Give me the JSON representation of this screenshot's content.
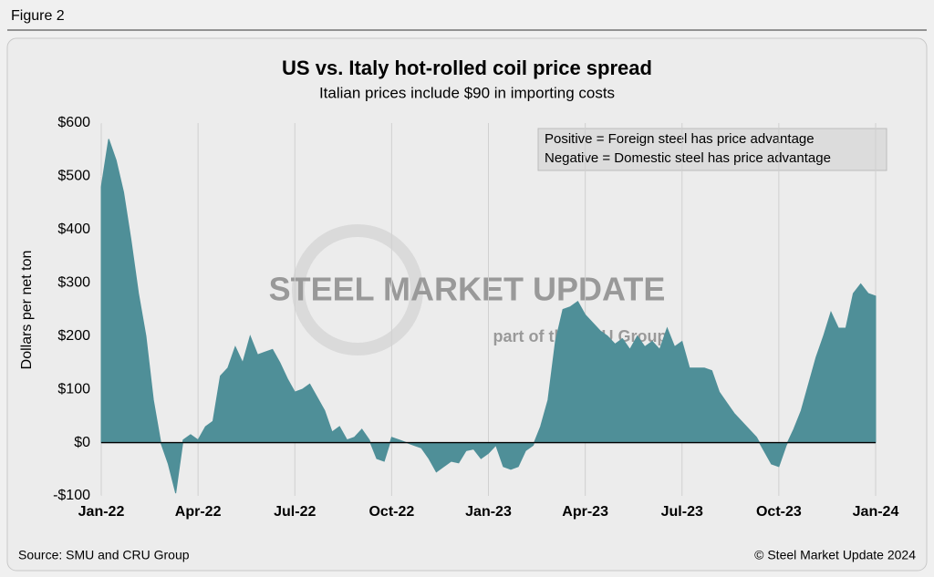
{
  "figure_label": "Figure 2",
  "chart_data": {
    "type": "area",
    "title": "US vs. Italy hot-rolled coil price spread",
    "subtitle": "Italian prices include $90 in importing costs",
    "y_label": "Dollars per net ton",
    "annotations": [
      "Positive = Foreign steel has price advantage",
      "Negative = Domestic steel has price advantage"
    ],
    "watermark": [
      "STEEL MARKET UPDATE",
      "part of the CRU Group"
    ],
    "categories": [
      "Jan-22",
      null,
      null,
      null,
      null,
      null,
      null,
      null,
      null,
      null,
      null,
      null,
      null,
      "Apr-22",
      null,
      null,
      null,
      null,
      null,
      null,
      null,
      null,
      null,
      null,
      null,
      null,
      "Jul-22",
      null,
      null,
      null,
      null,
      null,
      null,
      null,
      null,
      null,
      null,
      null,
      null,
      "Oct-22",
      null,
      null,
      null,
      null,
      null,
      null,
      null,
      null,
      null,
      null,
      null,
      null,
      "Jan-23",
      null,
      null,
      null,
      null,
      null,
      null,
      null,
      null,
      null,
      null,
      null,
      null,
      "Apr-23",
      null,
      null,
      null,
      null,
      null,
      null,
      null,
      null,
      null,
      null,
      null,
      null,
      "Jul-23",
      null,
      null,
      null,
      null,
      null,
      null,
      null,
      null,
      null,
      null,
      null,
      null,
      "Oct-23",
      null,
      null,
      null,
      null,
      null,
      null,
      null,
      null,
      null,
      null,
      null,
      null,
      "Jan-24"
    ],
    "values": [
      480,
      570,
      530,
      470,
      380,
      280,
      200,
      80,
      0,
      -40,
      -95,
      5,
      15,
      5,
      30,
      40,
      125,
      140,
      180,
      150,
      200,
      165,
      170,
      175,
      150,
      120,
      95,
      100,
      110,
      85,
      60,
      20,
      30,
      5,
      10,
      25,
      5,
      -30,
      -35,
      10,
      5,
      0,
      -5,
      -10,
      -30,
      -55,
      -45,
      -35,
      -38,
      -15,
      -12,
      -30,
      -20,
      -5,
      -45,
      -50,
      -45,
      -15,
      -5,
      30,
      80,
      190,
      250,
      255,
      265,
      240,
      225,
      210,
      200,
      185,
      195,
      175,
      200,
      180,
      190,
      175,
      215,
      180,
      190,
      140,
      140,
      140,
      135,
      95,
      75,
      55,
      40,
      25,
      10,
      -15,
      -40,
      -45,
      -5,
      25,
      60,
      110,
      160,
      200,
      245,
      215,
      215,
      280,
      298,
      280,
      275
    ],
    "color": "#4f8f98",
    "ylim": [
      -100,
      600
    ],
    "yticks": [
      {
        "value": -100,
        "label": "-$100"
      },
      {
        "value": 0,
        "label": "$0"
      },
      {
        "value": 100,
        "label": "$100"
      },
      {
        "value": 200,
        "label": "$200"
      },
      {
        "value": 300,
        "label": "$300"
      },
      {
        "value": 400,
        "label": "$400"
      },
      {
        "value": 500,
        "label": "$500"
      },
      {
        "value": 600,
        "label": "$600"
      }
    ],
    "xgrid": true,
    "source": "Source: SMU and CRU Group",
    "copyright": "© Steel Market Update 2024"
  }
}
